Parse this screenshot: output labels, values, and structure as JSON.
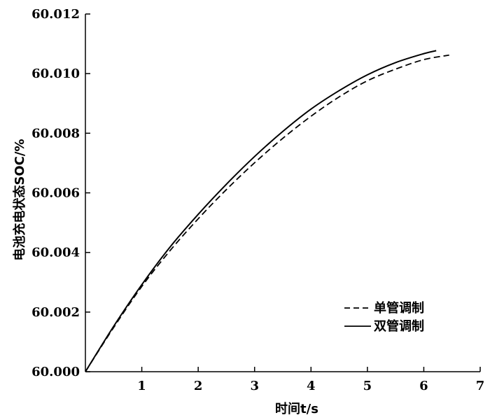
{
  "chart_data": {
    "type": "line",
    "title": "",
    "xlabel": "时间t/s",
    "ylabel": "电池充电状态SOC/%",
    "xlim": [
      0,
      7
    ],
    "ylim": [
      60.0,
      60.012
    ],
    "x_ticks": [
      "1",
      "2",
      "3",
      "4",
      "5",
      "6",
      "7"
    ],
    "y_ticks": [
      "60.000",
      "60.002",
      "60.004",
      "60.006",
      "60.008",
      "60.010",
      "60.012"
    ],
    "grid": false,
    "legend_position": "bottom-right",
    "series": [
      {
        "name": "单管调制",
        "style": "dashed",
        "color": "#000000",
        "x": [
          0,
          0.5,
          1,
          1.5,
          2,
          2.5,
          3,
          3.5,
          4,
          4.5,
          5,
          5.5,
          6,
          6.45
        ],
        "y": [
          60.0,
          60.00148,
          60.00286,
          60.00406,
          60.00513,
          60.00611,
          60.00701,
          60.00783,
          60.00857,
          60.00922,
          60.00976,
          60.01015,
          60.01047,
          60.01062
        ]
      },
      {
        "name": "双管调制",
        "style": "solid",
        "color": "#000000",
        "x": [
          0,
          0.5,
          1,
          1.5,
          2,
          2.5,
          3,
          3.5,
          4,
          4.5,
          5,
          5.5,
          6,
          6.22
        ],
        "y": [
          60.0,
          60.00152,
          60.00292,
          60.00418,
          60.00528,
          60.00629,
          60.00722,
          60.00806,
          60.00881,
          60.00943,
          60.00996,
          60.01037,
          60.01067,
          60.01077
        ]
      }
    ]
  }
}
